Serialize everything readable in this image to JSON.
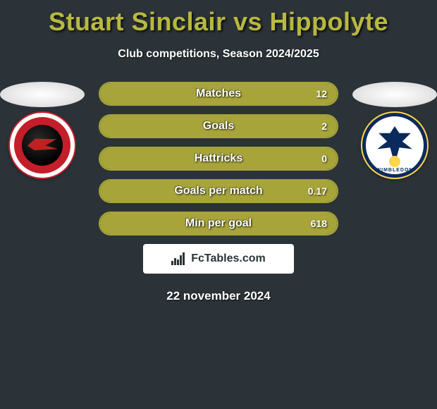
{
  "title": "Stuart Sinclair vs Hippolyte",
  "title_color": "#b8b83f",
  "subtitle": "Club competitions, Season 2024/2025",
  "background_color": "#2b3338",
  "players": {
    "left": {
      "name": "Stuart Sinclair",
      "club": "Walsall FC",
      "badge_primary": "#c21f2a",
      "badge_secondary": "#ffffff"
    },
    "right": {
      "name": "Hippolyte",
      "club": "AFC Wimbledon",
      "badge_primary": "#0a2a5c",
      "badge_secondary": "#ffd54a"
    }
  },
  "stats": {
    "bar_border_color": "#a7a43a",
    "bar_fill_color": "#a7a43a",
    "label_fontsize": 16,
    "value_fontsize": 14,
    "rows": [
      {
        "label": "Matches",
        "left": "",
        "right": "12",
        "fill_pct": 100
      },
      {
        "label": "Goals",
        "left": "",
        "right": "2",
        "fill_pct": 100
      },
      {
        "label": "Hattricks",
        "left": "",
        "right": "0",
        "fill_pct": 100
      },
      {
        "label": "Goals per match",
        "left": "",
        "right": "0.17",
        "fill_pct": 100
      },
      {
        "label": "Min per goal",
        "left": "",
        "right": "618",
        "fill_pct": 100
      }
    ]
  },
  "footer": {
    "brand": "FcTables.com",
    "box_bg": "#ffffff",
    "text_color": "#2b3338"
  },
  "date": "22 november 2024"
}
